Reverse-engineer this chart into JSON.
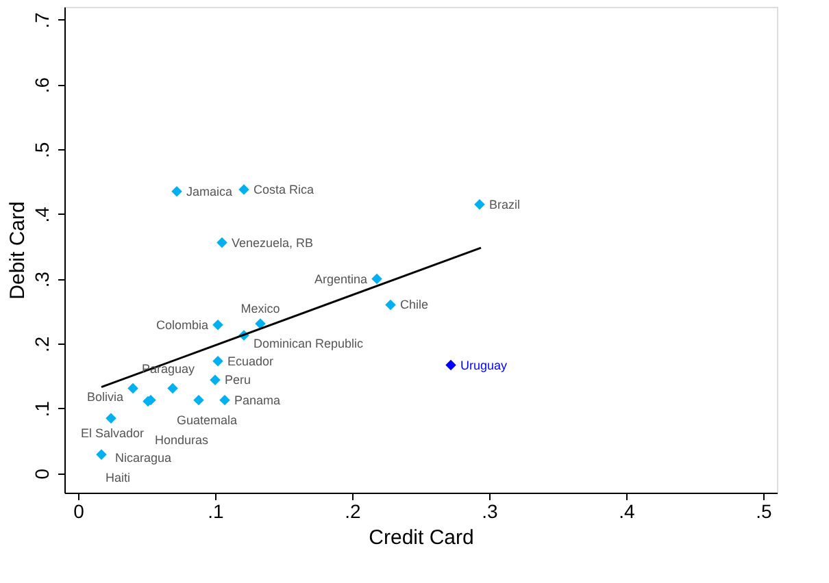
{
  "chart_data": {
    "type": "scatter",
    "xlabel": "Credit Card",
    "ylabel": "Debit Card",
    "marker": "diamond",
    "grid": false,
    "xlim": [
      -0.01,
      0.51
    ],
    "xticks": [
      {
        "value": 0,
        "label": "0"
      },
      {
        "value": 0.1,
        "label": ".1"
      },
      {
        "value": 0.2,
        "label": ".2"
      },
      {
        "value": 0.3,
        "label": ".3"
      },
      {
        "value": 0.4,
        "label": ".4"
      },
      {
        "value": 0.5,
        "label": ".5"
      }
    ],
    "ylim": [
      -0.03,
      0.72
    ],
    "yticks": [
      {
        "value": 0,
        "label": "0"
      },
      {
        "value": 0.1,
        "label": ".1"
      },
      {
        "value": 0.2,
        "label": ".2"
      },
      {
        "value": 0.3,
        "label": ".3"
      },
      {
        "value": 0.4,
        "label": ".4"
      },
      {
        "value": 0.5,
        "label": ".5"
      },
      {
        "value": 0.6,
        "label": ".6"
      },
      {
        "value": 0.7,
        "label": ".7"
      }
    ],
    "series": [
      {
        "color": "#00b0f0",
        "x": [
          0.017,
          0.024,
          0.04,
          0.069,
          0.053,
          0.051,
          0.088,
          0.107,
          0.1,
          0.102,
          0.102,
          0.133,
          0.121,
          0.105,
          0.072,
          0.121,
          0.293,
          0.218,
          0.228
        ],
        "values": [
          0.029,
          0.085,
          0.131,
          0.131,
          0.113,
          0.111,
          0.113,
          0.113,
          0.144,
          0.173,
          0.229,
          0.231,
          0.213,
          0.356,
          0.435,
          0.438,
          0.415,
          0.3,
          0.26
        ]
      },
      {
        "color": "#0000ff",
        "x": [
          0.272
        ],
        "values": [
          0.167
        ]
      },
      {
        "type": "line",
        "marker": "none",
        "color": "#000000",
        "x": [
          0.017,
          0.294
        ],
        "values": [
          0.133,
          0.348
        ]
      }
    ],
    "annotations": [
      {
        "text": "Haiti",
        "x": 0.017,
        "y": 0.029
      },
      {
        "text": "Nicaragua",
        "x": 0.024,
        "y": 0.085
      },
      {
        "text": "Bolivia",
        "x": 0.04,
        "y": 0.131
      },
      {
        "text": "Guatemala",
        "x": 0.069,
        "y": 0.131
      },
      {
        "text": "Honduras",
        "x": 0.053,
        "y": 0.113
      },
      {
        "text": "El Salvador",
        "x": 0.051,
        "y": 0.111
      },
      {
        "text": "Paraguay",
        "x": 0.088,
        "y": 0.113
      },
      {
        "text": "Panama",
        "x": 0.107,
        "y": 0.113
      },
      {
        "text": "Peru",
        "x": 0.1,
        "y": 0.144
      },
      {
        "text": "Ecuador",
        "x": 0.102,
        "y": 0.173
      },
      {
        "text": "Colombia",
        "x": 0.102,
        "y": 0.229
      },
      {
        "text": "Mexico",
        "x": 0.133,
        "y": 0.231
      },
      {
        "text": "Dominican Republic",
        "x": 0.121,
        "y": 0.213
      },
      {
        "text": "Venezuela, RB",
        "x": 0.105,
        "y": 0.356
      },
      {
        "text": "Jamaica",
        "x": 0.072,
        "y": 0.435
      },
      {
        "text": "Costa Rica",
        "x": 0.121,
        "y": 0.438
      },
      {
        "text": "Brazil",
        "x": 0.293,
        "y": 0.415
      },
      {
        "text": "Argentina",
        "x": 0.218,
        "y": 0.3
      },
      {
        "text": "Chile",
        "x": 0.228,
        "y": 0.26
      },
      {
        "text": "Uruguay",
        "x": 0.272,
        "y": 0.167
      }
    ]
  }
}
